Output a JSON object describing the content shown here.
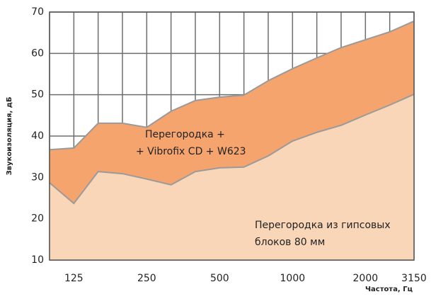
{
  "chart_data": {
    "type": "area",
    "ylabel": "Звукоизоляция, дБ",
    "xlabel": "Частота, Гц",
    "categories": [
      null,
      "125",
      null,
      null,
      "250",
      null,
      null,
      "500",
      null,
      null,
      "1000",
      null,
      null,
      "2000",
      null,
      "3150"
    ],
    "series": [
      {
        "color": "#f5a46e",
        "values": [
          36.7,
          37.1,
          43.1,
          43.1,
          42.1,
          46,
          48.6,
          49.4,
          49.9,
          53.4,
          56.3,
          58.9,
          61.4,
          63.3,
          65.2,
          67.8
        ]
      },
      {
        "color": "#f9d6b8",
        "values": [
          28.7,
          23.7,
          31.4,
          30.9,
          29.6,
          28.2,
          31.4,
          32.3,
          32.5,
          35.2,
          38.8,
          40.9,
          42.6,
          45.1,
          47.5,
          50.1
        ]
      }
    ],
    "annotations": [
      {
        "lines": [
          "Перегородка +",
          "+ Vibrofix CD + W623"
        ]
      },
      {
        "lines": [
          "Перегородка из гипсовых",
          "блоков 80 мм"
        ]
      }
    ],
    "ylim": [
      10,
      70
    ],
    "yticks": [
      10,
      20,
      30,
      40,
      50,
      60,
      70
    ],
    "grid": true,
    "line_color": "#9a9a9a"
  }
}
